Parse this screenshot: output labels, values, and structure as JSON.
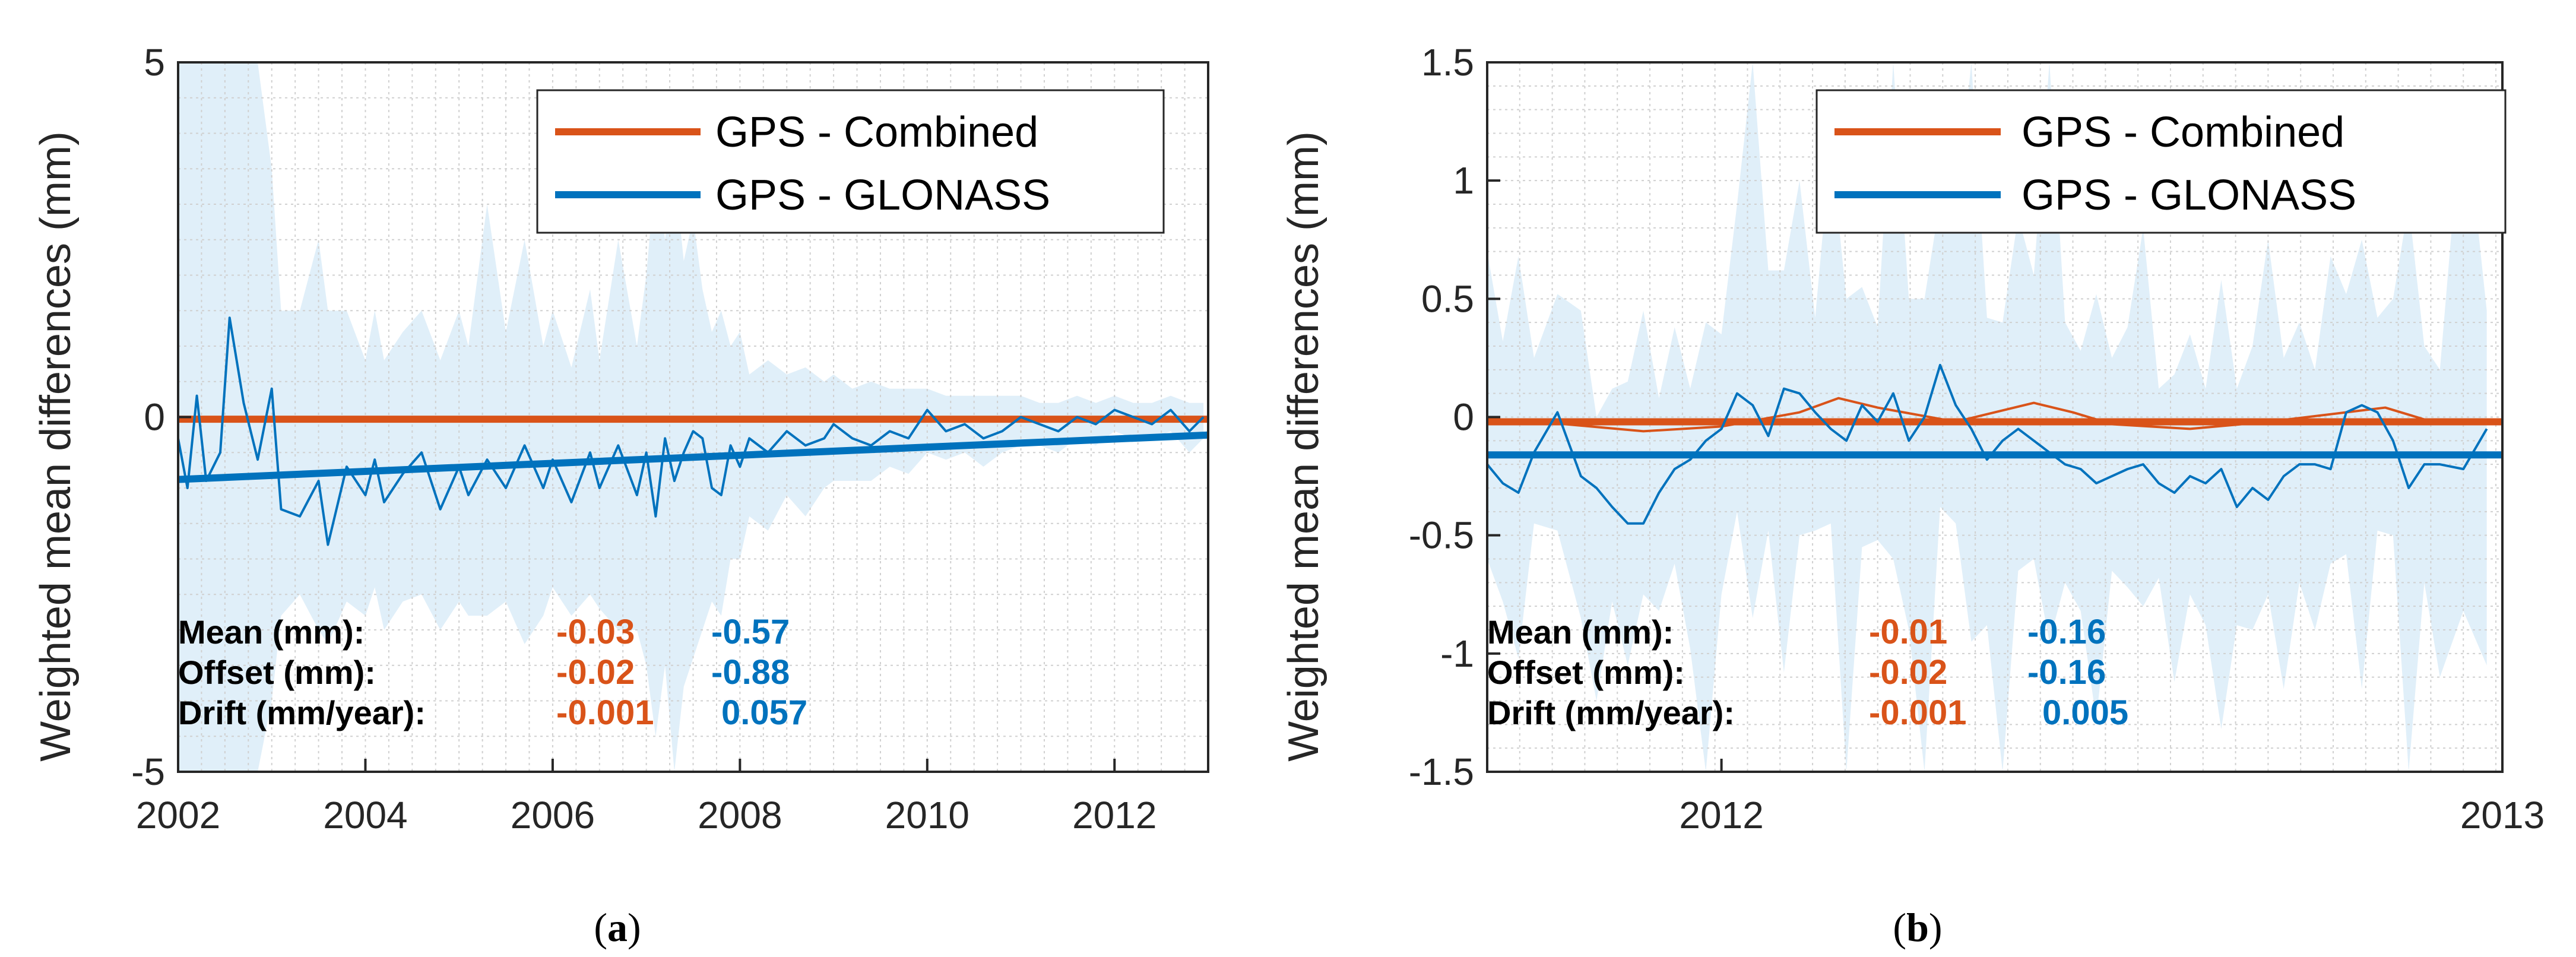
{
  "colors": {
    "combined": "#D95319",
    "glonass": "#0072BD",
    "band": "#D6E9F7",
    "grid": "#d0d0d0",
    "axis": "#262626"
  },
  "chart_data": [
    {
      "type": "line",
      "panel": "a",
      "caption": "a",
      "ylabel": "Weighted mean differences (mm)",
      "xlim": [
        2002,
        2013
      ],
      "ylim": [
        -5,
        5
      ],
      "x_ticks": [
        2002,
        2004,
        2006,
        2008,
        2010,
        2012
      ],
      "x_tick_labels": [
        "2002",
        "2004",
        "2006",
        "2008",
        "2010",
        "2012"
      ],
      "y_ticks": [
        -5,
        0,
        5
      ],
      "y_tick_labels": [
        "-5",
        "0",
        "5"
      ],
      "legend": {
        "position": "top-right",
        "entries": [
          {
            "label": "GPS - Combined",
            "series": "combined"
          },
          {
            "label": "GPS - GLONASS",
            "series": "glonass"
          }
        ]
      },
      "series": [
        {
          "name": "GPS - Combined",
          "key": "combined",
          "x": [
            2002.0,
            2013.0
          ],
          "values": [
            -0.03,
            -0.03
          ]
        },
        {
          "name": "GPS - GLONASS",
          "key": "glonass",
          "x": [
            2002.0,
            2002.1,
            2002.2,
            2002.3,
            2002.45,
            2002.55,
            2002.7,
            2002.85,
            2003.0,
            2003.1,
            2003.3,
            2003.5,
            2003.6,
            2003.8,
            2004.0,
            2004.1,
            2004.2,
            2004.4,
            2004.6,
            2004.8,
            2005.0,
            2005.1,
            2005.3,
            2005.5,
            2005.7,
            2005.9,
            2006.0,
            2006.2,
            2006.4,
            2006.5,
            2006.7,
            2006.9,
            2007.0,
            2007.1,
            2007.2,
            2007.3,
            2007.4,
            2007.5,
            2007.6,
            2007.7,
            2007.8,
            2007.9,
            2008.0,
            2008.1,
            2008.3,
            2008.5,
            2008.7,
            2008.9,
            2009.0,
            2009.2,
            2009.4,
            2009.6,
            2009.8,
            2010.0,
            2010.2,
            2010.4,
            2010.6,
            2010.8,
            2011.0,
            2011.2,
            2011.4,
            2011.6,
            2011.8,
            2012.0,
            2012.2,
            2012.4,
            2012.6,
            2012.8,
            2012.95
          ],
          "values": [
            -0.3,
            -1.0,
            0.3,
            -0.9,
            -0.5,
            1.4,
            0.2,
            -0.6,
            0.4,
            -1.3,
            -1.4,
            -0.9,
            -1.8,
            -0.7,
            -1.1,
            -0.6,
            -1.2,
            -0.8,
            -0.5,
            -1.3,
            -0.7,
            -1.1,
            -0.6,
            -1.0,
            -0.4,
            -1.0,
            -0.6,
            -1.2,
            -0.5,
            -1.0,
            -0.4,
            -1.1,
            -0.5,
            -1.4,
            -0.3,
            -0.9,
            -0.5,
            -0.2,
            -0.3,
            -1.0,
            -1.1,
            -0.4,
            -0.7,
            -0.3,
            -0.5,
            -0.2,
            -0.4,
            -0.3,
            -0.1,
            -0.3,
            -0.4,
            -0.2,
            -0.3,
            0.1,
            -0.2,
            -0.1,
            -0.3,
            -0.2,
            0.0,
            -0.1,
            -0.2,
            0.0,
            -0.1,
            0.1,
            0.0,
            -0.1,
            0.1,
            -0.2,
            0.0
          ],
          "band_upper": [
            5,
            5,
            5,
            5,
            5,
            5,
            5,
            5,
            3.5,
            1.5,
            1.5,
            2.5,
            1.5,
            1.5,
            0.8,
            1.5,
            0.8,
            1.2,
            1.5,
            0.8,
            1.5,
            1.0,
            3.0,
            1.2,
            2.5,
            1.0,
            1.5,
            0.7,
            1.8,
            0.8,
            2.5,
            1.0,
            2.0,
            3.5,
            2.5,
            3.5,
            2.2,
            2.8,
            1.8,
            1.2,
            1.5,
            1.0,
            1.2,
            0.6,
            0.8,
            0.6,
            0.7,
            0.5,
            0.6,
            0.4,
            0.5,
            0.4,
            0.4,
            0.4,
            0.3,
            0.3,
            0.3,
            0.3,
            0.3,
            0.2,
            0.2,
            0.3,
            0.2,
            0.3,
            0.2,
            0.2,
            0.3,
            0.2,
            0.2
          ],
          "band_lower": [
            -5,
            -5,
            -5,
            -5,
            -5,
            -5,
            -5,
            -5,
            -4.0,
            -2.8,
            -2.5,
            -3.0,
            -3.2,
            -2.6,
            -2.8,
            -2.4,
            -3.0,
            -2.6,
            -2.5,
            -3.0,
            -2.6,
            -2.8,
            -2.8,
            -2.6,
            -3.2,
            -2.8,
            -2.4,
            -2.8,
            -2.5,
            -2.7,
            -3.0,
            -3.0,
            -3.5,
            -4.5,
            -3.5,
            -5.0,
            -3.8,
            -3.4,
            -3.0,
            -2.6,
            -2.8,
            -2.0,
            -2.0,
            -1.4,
            -1.6,
            -1.1,
            -1.4,
            -1.0,
            -0.9,
            -0.9,
            -0.9,
            -0.7,
            -0.8,
            -0.5,
            -0.6,
            -0.5,
            -0.7,
            -0.5,
            -0.4,
            -0.4,
            -0.5,
            -0.3,
            -0.4,
            -0.2,
            -0.3,
            -0.3,
            -0.2,
            -0.5,
            -0.3
          ]
        },
        {
          "name": "GPS - GLONASS trend",
          "key": "glonass_trend",
          "x": [
            2002.0,
            2013.0
          ],
          "values": [
            -0.88,
            -0.253
          ]
        }
      ],
      "stats": {
        "rows": [
          {
            "label": "Mean (mm):",
            "combined": "-0.03",
            "glonass": "-0.57"
          },
          {
            "label": "Offset (mm):",
            "combined": "-0.02",
            "glonass": "-0.88"
          },
          {
            "label": "Drift (mm/year):",
            "combined": "-0.001",
            "glonass": "0.057"
          }
        ]
      }
    },
    {
      "type": "line",
      "panel": "b",
      "caption": "b",
      "ylabel": "Weighted mean differences (mm)",
      "xlim": [
        2011.7,
        2013.0
      ],
      "ylim": [
        -1.5,
        1.5
      ],
      "x_ticks": [
        2012,
        2013
      ],
      "x_tick_labels": [
        "2012",
        "2013"
      ],
      "y_ticks": [
        -1.5,
        -1,
        -0.5,
        0,
        0.5,
        1,
        1.5
      ],
      "y_tick_labels": [
        "-1.5",
        "-1",
        "-0.5",
        "0",
        "0.5",
        "1",
        "1.5"
      ],
      "legend": {
        "position": "top-right",
        "entries": [
          {
            "label": "GPS - Combined",
            "series": "combined"
          },
          {
            "label": "GPS - GLONASS",
            "series": "glonass"
          }
        ]
      },
      "series": [
        {
          "name": "GPS - Combined",
          "key": "combined",
          "x": [
            2011.7,
            2011.8,
            2011.9,
            2012.0,
            2012.1,
            2012.15,
            2012.2,
            2012.3,
            2012.4,
            2012.45,
            2012.5,
            2012.6,
            2012.7,
            2012.8,
            2012.85,
            2012.9,
            2013.0
          ],
          "values": [
            -0.02,
            -0.03,
            -0.06,
            -0.04,
            0.02,
            0.08,
            0.04,
            -0.02,
            0.06,
            0.02,
            -0.03,
            -0.05,
            -0.02,
            0.02,
            0.04,
            -0.01,
            -0.02
          ]
        },
        {
          "name": "GPS - Combined mean",
          "key": "combined_mean",
          "x": [
            2011.7,
            2013.0
          ],
          "values": [
            -0.02,
            -0.02
          ]
        },
        {
          "name": "GPS - GLONASS",
          "key": "glonass",
          "x": [
            2011.7,
            2011.72,
            2011.74,
            2011.76,
            2011.79,
            2011.82,
            2011.84,
            2011.86,
            2011.88,
            2011.9,
            2011.92,
            2011.94,
            2011.96,
            2011.98,
            2012.0,
            2012.02,
            2012.04,
            2012.06,
            2012.08,
            2012.1,
            2012.12,
            2012.14,
            2012.16,
            2012.18,
            2012.2,
            2012.22,
            2012.24,
            2012.26,
            2012.28,
            2012.3,
            2012.32,
            2012.34,
            2012.36,
            2012.38,
            2012.4,
            2012.42,
            2012.44,
            2012.46,
            2012.48,
            2012.5,
            2012.52,
            2012.54,
            2012.56,
            2012.58,
            2012.6,
            2012.62,
            2012.64,
            2012.66,
            2012.68,
            2012.7,
            2012.72,
            2012.74,
            2012.76,
            2012.78,
            2012.8,
            2012.82,
            2012.84,
            2012.86,
            2012.88,
            2012.9,
            2012.92,
            2012.95,
            2012.98
          ],
          "values": [
            -0.2,
            -0.28,
            -0.32,
            -0.15,
            0.02,
            -0.25,
            -0.3,
            -0.38,
            -0.45,
            -0.45,
            -0.32,
            -0.22,
            -0.18,
            -0.1,
            -0.05,
            0.1,
            0.05,
            -0.08,
            0.12,
            0.1,
            0.02,
            -0.05,
            -0.1,
            0.05,
            -0.02,
            0.1,
            -0.1,
            0.0,
            0.22,
            0.05,
            -0.05,
            -0.18,
            -0.1,
            -0.05,
            -0.1,
            -0.15,
            -0.2,
            -0.22,
            -0.28,
            -0.25,
            -0.22,
            -0.2,
            -0.28,
            -0.32,
            -0.25,
            -0.28,
            -0.22,
            -0.38,
            -0.3,
            -0.35,
            -0.25,
            -0.2,
            -0.2,
            -0.22,
            0.02,
            0.05,
            0.02,
            -0.1,
            -0.3,
            -0.2,
            -0.2,
            -0.22,
            -0.05
          ]
        },
        {
          "name": "GPS - GLONASS mean",
          "key": "glonass_mean",
          "x": [
            2011.7,
            2013.0
          ],
          "values": [
            -0.16,
            -0.16
          ]
        }
      ],
      "stats": {
        "rows": [
          {
            "label": "Mean (mm):",
            "combined": "-0.01",
            "glonass": "-0.16"
          },
          {
            "label": "Offset (mm):",
            "combined": "-0.02",
            "glonass": "-0.16"
          },
          {
            "label": "Drift (mm/year):",
            "combined": "-0.001",
            "glonass": "0.005"
          }
        ]
      }
    }
  ]
}
